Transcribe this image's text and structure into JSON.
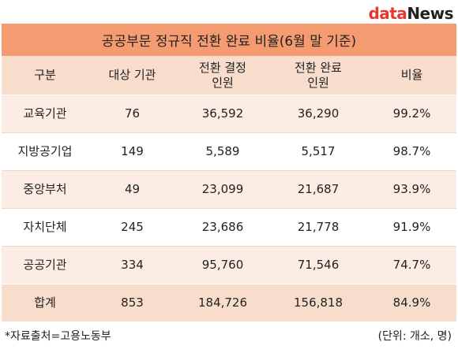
{
  "logo": {
    "part1": "data",
    "part2": "News"
  },
  "chart_data": {
    "type": "table",
    "title": "공공부문 정규직 전환 완료 비율(6월 말 기준)",
    "columns": [
      "구분",
      "대상 기관",
      "전환 결정\n인원",
      "전환 완료\n인원",
      "비율"
    ],
    "rows": [
      [
        "교육기관",
        "76",
        "36,592",
        "36,290",
        "99.2%"
      ],
      [
        "지방공기업",
        "149",
        "5,589",
        "5,517",
        "98.7%"
      ],
      [
        "중앙부처",
        "49",
        "23,099",
        "21,687",
        "93.9%"
      ],
      [
        "자치단체",
        "245",
        "23,686",
        "21,778",
        "91.9%"
      ],
      [
        "공공기관",
        "334",
        "95,760",
        "71,546",
        "74.7%"
      ]
    ],
    "total": [
      "합계",
      "853",
      "184,726",
      "156,818",
      "84.9%"
    ]
  },
  "footer": {
    "source": "*자료출처=고용노동부",
    "unit": "(단위: 개소, 명)"
  },
  "colors": {
    "title_bg": "#f59b71",
    "header_bg": "#f8dccc",
    "row_alt_bg": "#fbede4",
    "logo_red": "#e8372c"
  }
}
